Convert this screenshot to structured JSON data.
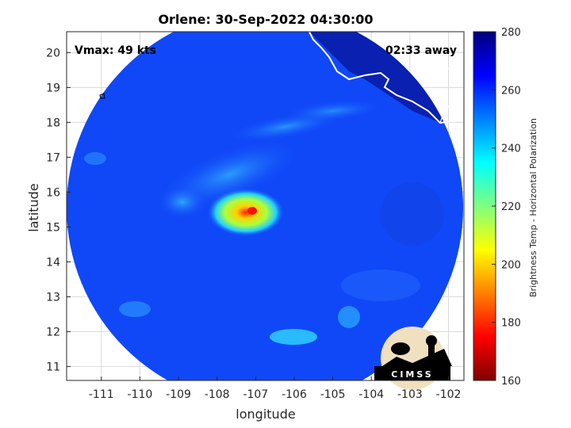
{
  "chart_data": {
    "type": "heatmap",
    "title": "Orlene: 30-Sep-2022 04:30:00",
    "xlabel": "longitude",
    "ylabel": "latitude",
    "xlim": [
      -111.9,
      -101.6
    ],
    "ylim": [
      10.6,
      20.6
    ],
    "xticks": [
      -111,
      -110,
      -109,
      -108,
      -107,
      -106,
      -105,
      -104,
      -103,
      -102
    ],
    "yticks": [
      11,
      12,
      13,
      14,
      15,
      16,
      17,
      18,
      19,
      20
    ],
    "grid": true,
    "annotations": {
      "vmax": "Vmax: 49 kts",
      "time_away": "02:33 away"
    },
    "colorbar": {
      "label": "Brightness Temp - Horizontal Polarization",
      "min": 160,
      "max": 280,
      "ticks": [
        160,
        180,
        200,
        220,
        240,
        260,
        280
      ]
    },
    "storm_center": {
      "lon": -107.0,
      "lat": 15.4,
      "min_temp": 185
    },
    "logo_text": "CIMSS"
  }
}
